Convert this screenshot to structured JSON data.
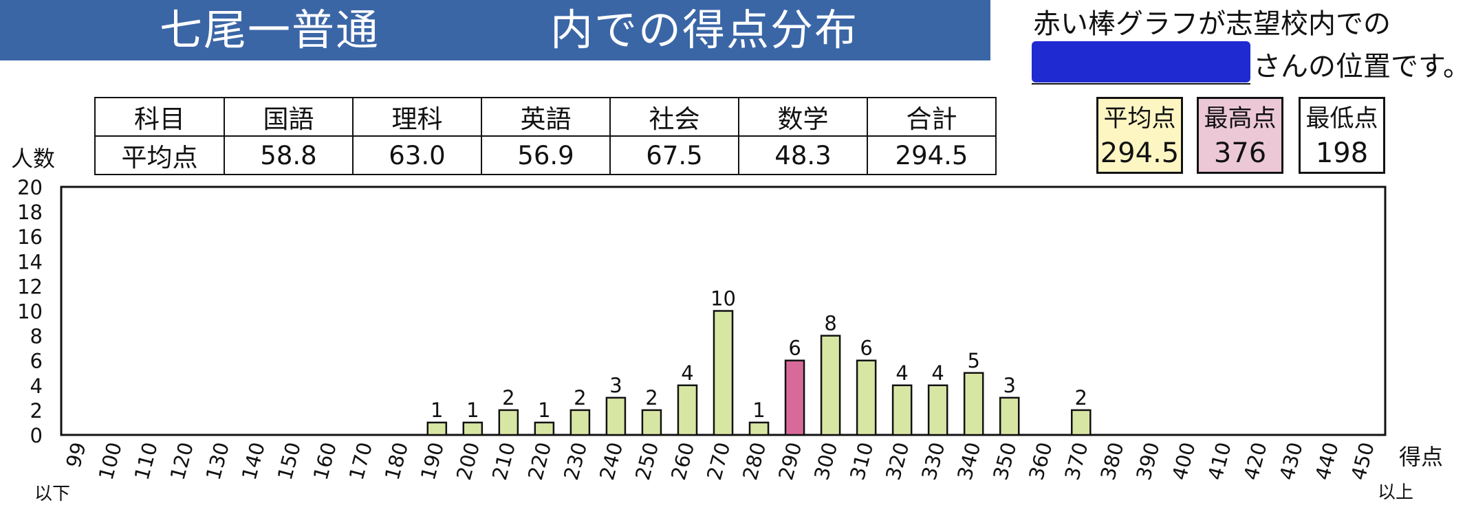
{
  "header": {
    "title_left": "七尾一普通",
    "title_right": "内での得点分布"
  },
  "note": {
    "line1": "赤い棒グラフが志望校内での",
    "line2": "さんの位置です。"
  },
  "score_table": {
    "headers": [
      "科目",
      "国語",
      "理科",
      "英語",
      "社会",
      "数学",
      "合計"
    ],
    "row_label": "平均点",
    "values": [
      "58.8",
      "63.0",
      "56.9",
      "67.5",
      "48.3",
      "294.5"
    ]
  },
  "stats": {
    "avg": {
      "label": "平均点",
      "value": "294.5",
      "color": "#fdf6c3"
    },
    "max": {
      "label": "最高点",
      "value": "376",
      "color": "#ecc8d6"
    },
    "min": {
      "label": "最低点",
      "value": "198",
      "color": "#ffffff"
    }
  },
  "chart_data": {
    "type": "bar",
    "ylabel": "人数",
    "xlabel": "得点",
    "x_low_note": "以下",
    "x_high_note": "以上",
    "ylim": [
      0,
      20
    ],
    "yticks": [
      0,
      2,
      4,
      6,
      8,
      10,
      12,
      14,
      16,
      18,
      20
    ],
    "categories": [
      "99",
      "100",
      "110",
      "120",
      "130",
      "140",
      "150",
      "160",
      "170",
      "180",
      "190",
      "200",
      "210",
      "220",
      "230",
      "240",
      "250",
      "260",
      "270",
      "280",
      "290",
      "300",
      "310",
      "320",
      "330",
      "340",
      "350",
      "360",
      "370",
      "380",
      "390",
      "400",
      "410",
      "420",
      "430",
      "440",
      "450"
    ],
    "values": [
      0,
      0,
      0,
      0,
      0,
      0,
      0,
      0,
      0,
      0,
      1,
      1,
      2,
      1,
      2,
      3,
      2,
      4,
      10,
      1,
      6,
      8,
      6,
      4,
      4,
      5,
      3,
      0,
      2,
      0,
      0,
      0,
      0,
      0,
      0,
      0,
      0
    ],
    "highlight_category": "290",
    "bar_color": "#d8e6a4",
    "highlight_color": "#d86a9a"
  }
}
